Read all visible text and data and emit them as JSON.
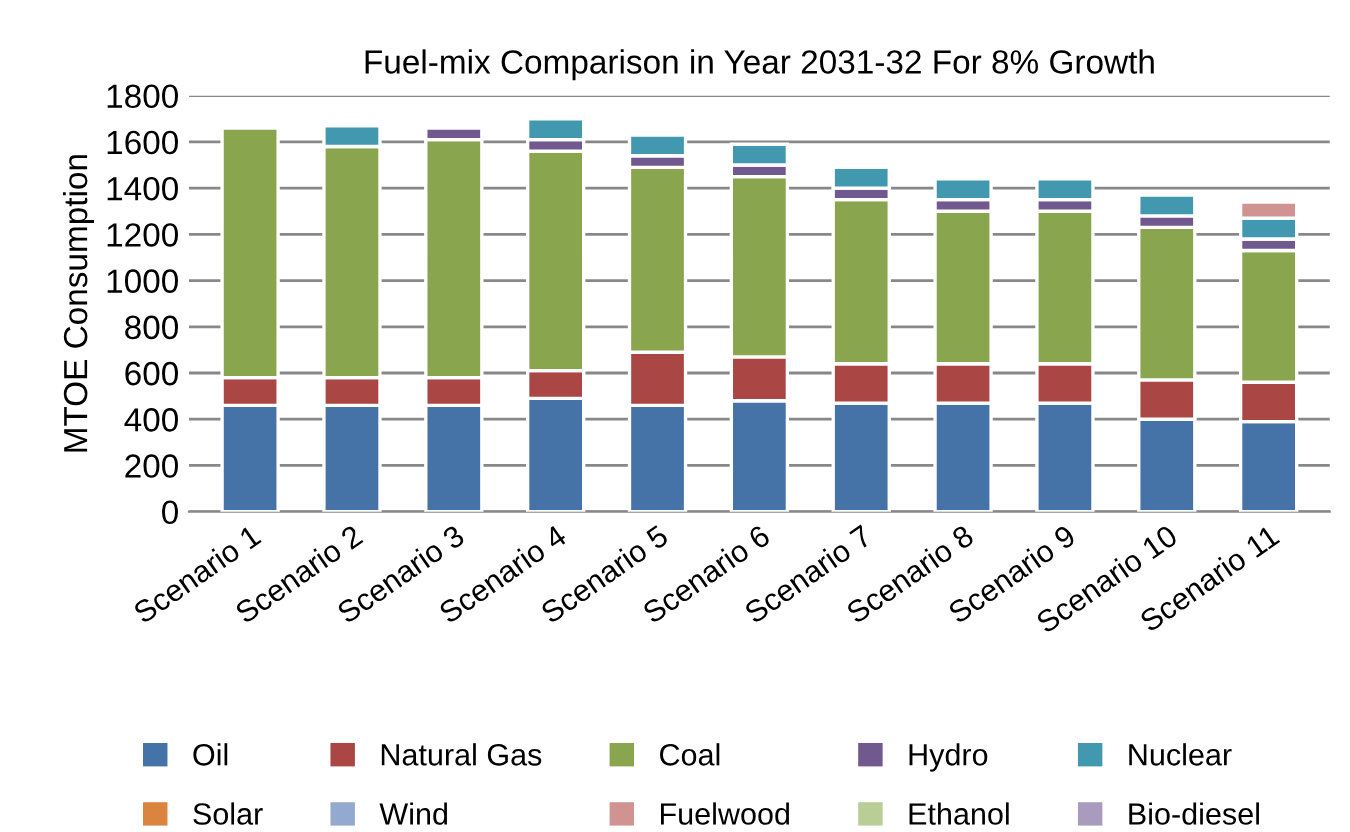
{
  "chart_data": {
    "type": "bar",
    "title": "Fuel-mix Comparison in Year 2031-32 For 8% Growth",
    "ylabel": "MTOE Consumption",
    "categories": [
      "Scenario 1",
      "Scenario 2",
      "Scenario 3",
      "Scenario 4",
      "Scenario 5",
      "Scenario 6",
      "Scenario 7",
      "Scenario 8",
      "Scenario 9",
      "Scenario 10",
      "Scenario 11"
    ],
    "stacked": true,
    "ylim": [
      0,
      1800
    ],
    "yticks": [
      0,
      200,
      400,
      600,
      800,
      1000,
      1200,
      1400,
      1600,
      1800
    ],
    "grid": "y",
    "legend": "bottom",
    "series": [
      {
        "name": "Oil",
        "color": "#4572a7",
        "values": [
          460,
          460,
          460,
          490,
          460,
          480,
          470,
          470,
          470,
          400,
          390
        ]
      },
      {
        "name": "Natural Gas",
        "color": "#aa4643",
        "values": [
          120,
          120,
          120,
          120,
          230,
          190,
          170,
          170,
          170,
          170,
          170
        ]
      },
      {
        "name": "Coal",
        "color": "#89a54e",
        "values": [
          1080,
          1000,
          1030,
          950,
          800,
          780,
          710,
          660,
          660,
          660,
          570
        ]
      },
      {
        "name": "Hydro",
        "color": "#71588f",
        "values": [
          null,
          null,
          50,
          50,
          50,
          50,
          50,
          50,
          50,
          50,
          50
        ]
      },
      {
        "name": "Nuclear",
        "color": "#4198af",
        "values": [
          null,
          90,
          null,
          90,
          90,
          90,
          90,
          90,
          90,
          90,
          90
        ]
      },
      {
        "name": "Solar",
        "color": "#db843d",
        "values": [
          null,
          null,
          null,
          null,
          null,
          null,
          null,
          null,
          null,
          null,
          null
        ]
      },
      {
        "name": "Wind",
        "color": "#93a9cf",
        "values": [
          null,
          null,
          null,
          null,
          null,
          null,
          null,
          null,
          null,
          null,
          null
        ]
      },
      {
        "name": "Fuelwood",
        "color": "#d19392",
        "values": [
          null,
          null,
          null,
          null,
          null,
          null,
          null,
          null,
          null,
          null,
          70
        ]
      },
      {
        "name": "Ethanol",
        "color": "#b9cd96",
        "values": [
          null,
          null,
          null,
          null,
          null,
          null,
          null,
          null,
          null,
          null,
          null
        ]
      },
      {
        "name": "Bio-diesel",
        "color": "#a99bbd",
        "values": [
          null,
          null,
          null,
          null,
          null,
          null,
          null,
          null,
          null,
          null,
          null
        ]
      }
    ]
  }
}
